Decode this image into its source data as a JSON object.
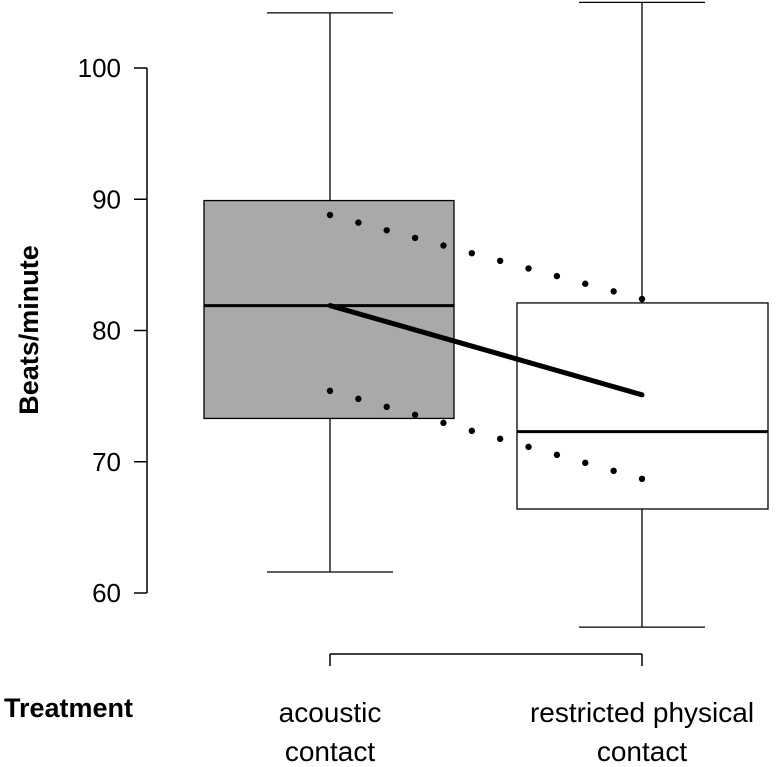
{
  "chart_data": {
    "type": "box",
    "ylabel": "Beats/minute",
    "xlabel": "Treatment",
    "yticks": [
      60,
      70,
      80,
      90,
      100
    ],
    "ylim": [
      58,
      105
    ],
    "categories": [
      {
        "line1": "acoustic",
        "line2": "contact"
      },
      {
        "line1": "restricted physical",
        "line2": "contact"
      }
    ],
    "boxes": [
      {
        "whisker_low": 61.6,
        "q1": 73.3,
        "median": 81.9,
        "q3": 89.9,
        "whisker_high": 104.2,
        "fill": "#a9a9a9"
      },
      {
        "whisker_low": 57.4,
        "q1": 66.4,
        "median": 72.3,
        "q3": 82.1,
        "whisker_high": 105.0,
        "fill": "#ffffff"
      }
    ],
    "mean_line": {
      "from": 81.9,
      "to": 75.1
    },
    "ci_upper": {
      "from": 88.8,
      "to": 82.4
    },
    "ci_lower": {
      "from": 75.4,
      "to": 68.7
    },
    "colors": {
      "stroke": "#000000",
      "box_a": "#a9a9a9",
      "box_b": "#ffffff"
    }
  }
}
